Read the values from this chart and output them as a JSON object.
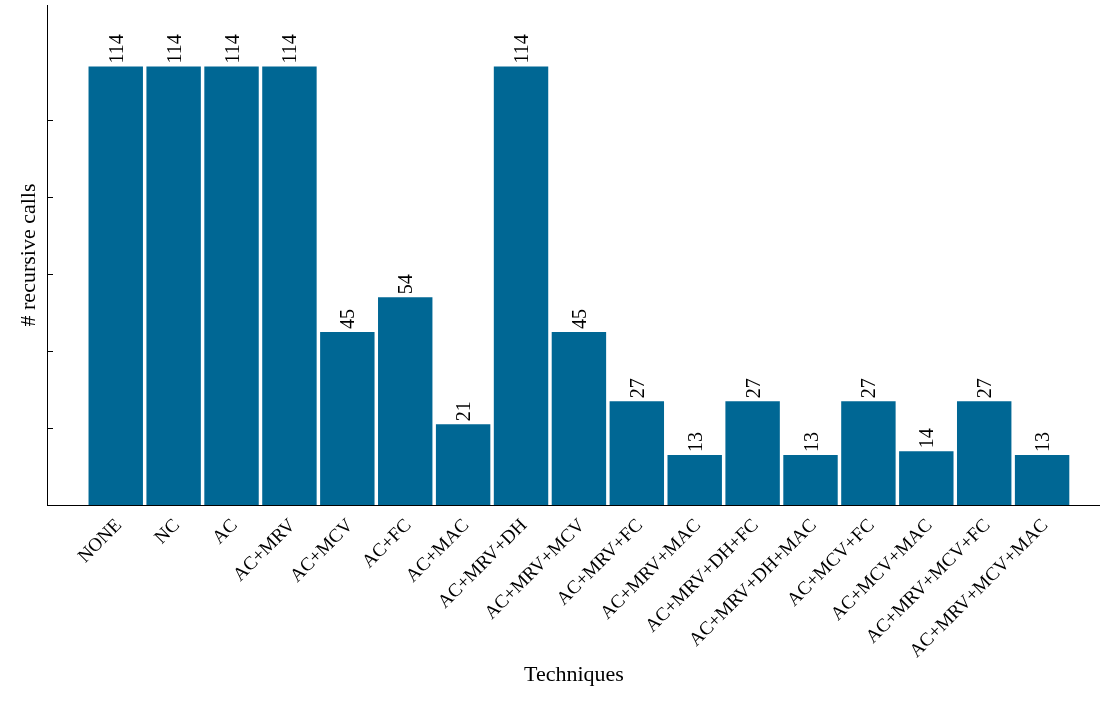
{
  "chart_data": {
    "type": "bar",
    "xlabel": "Techniques",
    "ylabel": "# recursive calls",
    "categories": [
      "NONE",
      "NC",
      "AC",
      "AC+MRV",
      "AC+MCV",
      "AC+FC",
      "AC+MAC",
      "AC+MRV+DH",
      "AC+MRV+MCV",
      "AC+MRV+FC",
      "AC+MRV+MAC",
      "AC+MRV+DH+FC",
      "AC+MRV+DH+MAC",
      "AC+MCV+FC",
      "AC+MCV+MAC",
      "AC+MRV+MCV+FC",
      "AC+MRV+MCV+MAC"
    ],
    "values": [
      114,
      114,
      114,
      114,
      45,
      54,
      21,
      114,
      45,
      27,
      13,
      27,
      13,
      27,
      14,
      27,
      13
    ],
    "color": "#006794",
    "ylim": [
      0,
      130
    ],
    "yticks": [
      {
        "value": 0,
        "label": null
      },
      {
        "value": 20,
        "label": null
      },
      {
        "value": 40,
        "label": null
      },
      {
        "value": 60,
        "label": null
      },
      {
        "value": 80,
        "label": null
      },
      {
        "value": 100,
        "label": null
      }
    ],
    "tick_labels": "x",
    "data_labels": true
  }
}
